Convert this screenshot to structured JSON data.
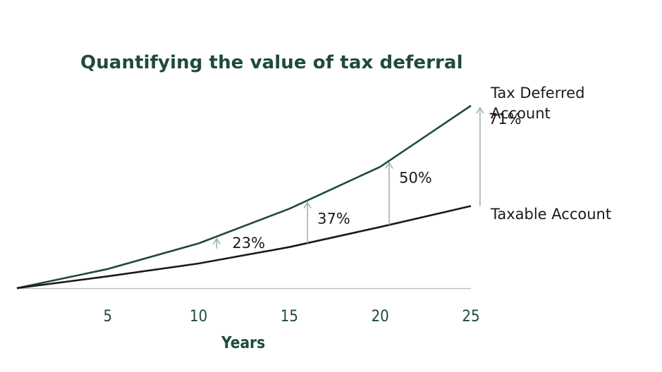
{
  "chart_data": {
    "type": "line",
    "title": "Quantifying the value of tax deferral",
    "xlabel": "Years",
    "ylabel": "",
    "x": [
      0,
      5,
      10,
      15,
      20,
      25
    ],
    "xticks": [
      "5",
      "10",
      "15",
      "20",
      "25"
    ],
    "xlim": [
      0,
      25
    ],
    "ylim": [
      0,
      100
    ],
    "grid": false,
    "legend": "labels-at-line-ends",
    "series": [
      {
        "name": "Tax Deferred Account",
        "color": "#1f4a3c",
        "values": [
          0,
          10.5,
          24.5,
          43.5,
          66.5,
          100
        ]
      },
      {
        "name": "Taxable Account",
        "color": "#1a1a1a",
        "values": [
          0,
          6.5,
          13.5,
          22.5,
          33.5,
          45
        ]
      }
    ],
    "annotations": [
      {
        "x": 11,
        "label": "23%"
      },
      {
        "x": 16,
        "label": "37%"
      },
      {
        "x": 20.5,
        "label": "50%"
      },
      {
        "x": 25.5,
        "label": "71%"
      }
    ],
    "annotation_color": "#9fb3ad"
  }
}
